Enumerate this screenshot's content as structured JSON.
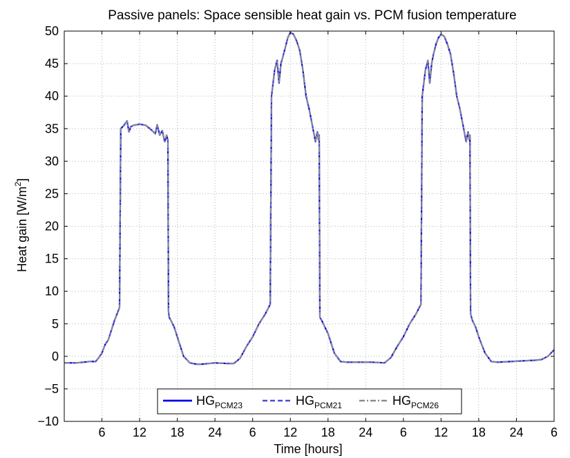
{
  "chart_data": {
    "type": "line",
    "title": "Passive panels: Space sensible heat gain vs. PCM fusion temperature",
    "xlabel": "Time [hours]",
    "ylabel_main": "Heat gain [W/m",
    "ylabel_sup": "2",
    "ylabel_tail": "]",
    "ylim": [
      -10,
      50
    ],
    "xlim": [
      0,
      78
    ],
    "grid": true,
    "legend_position": "bottom-center",
    "y_ticks": [
      -10,
      -5,
      0,
      5,
      10,
      15,
      20,
      25,
      30,
      35,
      40,
      45,
      50
    ],
    "x_ticks": [
      {
        "pos": 6,
        "label": "6"
      },
      {
        "pos": 12,
        "label": "12"
      },
      {
        "pos": 18,
        "label": "18"
      },
      {
        "pos": 24,
        "label": "24"
      },
      {
        "pos": 30,
        "label": "6"
      },
      {
        "pos": 36,
        "label": "12"
      },
      {
        "pos": 42,
        "label": "18"
      },
      {
        "pos": 48,
        "label": "24"
      },
      {
        "pos": 54,
        "label": "6"
      },
      {
        "pos": 60,
        "label": "12"
      },
      {
        "pos": 66,
        "label": "18"
      },
      {
        "pos": 72,
        "label": "24"
      },
      {
        "pos": 78,
        "label": "6"
      }
    ],
    "series": [
      {
        "name": "HG",
        "name_sub": "PCM23",
        "color": "#0000e6",
        "style": "solid"
      },
      {
        "name": "HG",
        "name_sub": "PCM21",
        "color": "#4a4ad8",
        "style": "dashed"
      },
      {
        "name": "HG",
        "name_sub": "PCM26",
        "color": "#8a8a8a",
        "style": "dashdot"
      }
    ],
    "x": [
      0,
      2,
      4,
      5,
      5.5,
      6,
      6.5,
      7,
      7.5,
      8,
      8.8,
      9,
      9.5,
      10,
      10.3,
      10.6,
      11,
      12,
      13,
      14,
      14.5,
      14.8,
      15.2,
      15.6,
      16,
      16.3,
      16.5,
      16.6,
      16.7,
      17,
      17.5,
      18,
      19,
      20,
      21,
      22,
      24,
      26,
      27,
      28,
      29,
      30,
      31,
      32,
      32.8,
      33,
      33.5,
      33.9,
      34.2,
      34.5,
      34.8,
      35.2,
      35.6,
      36,
      36.5,
      37,
      37.5,
      38,
      38.5,
      39,
      39.6,
      40,
      40.3,
      40.5,
      40.6,
      40.7,
      41,
      41.5,
      42,
      43,
      44,
      45,
      47,
      49,
      51,
      52,
      53,
      54,
      55,
      56,
      56.8,
      57,
      57.5,
      57.9,
      58.2,
      58.5,
      58.8,
      59.2,
      59.6,
      60,
      60.5,
      61,
      61.5,
      62,
      62.5,
      63,
      63.6,
      64,
      64.3,
      64.5,
      64.6,
      64.7,
      65,
      65.5,
      66,
      67,
      68,
      69,
      71,
      73,
      75,
      76,
      77,
      77.5,
      78
    ],
    "values": [
      -1.0,
      -1.0,
      -0.8,
      -0.8,
      -0.2,
      0.5,
      1.8,
      2.5,
      4.0,
      5.5,
      7.5,
      35.0,
      35.5,
      36.2,
      34.5,
      35.3,
      35.5,
      35.7,
      35.5,
      34.7,
      34.2,
      35.6,
      34.0,
      34.7,
      33.0,
      34.0,
      33.2,
      7.0,
      6.0,
      5.5,
      4.5,
      3.0,
      0.0,
      -1.0,
      -1.2,
      -1.2,
      -1.0,
      -1.1,
      -1.1,
      -0.3,
      1.5,
      3.0,
      5.0,
      6.5,
      8.0,
      40.0,
      44.0,
      45.5,
      42.0,
      45.0,
      46.0,
      47.5,
      49.0,
      49.8,
      49.5,
      48.5,
      47.0,
      44.0,
      40.0,
      38.0,
      35.0,
      33.0,
      34.5,
      33.3,
      34.0,
      6.0,
      5.5,
      4.5,
      3.5,
      0.5,
      -0.8,
      -0.9,
      -0.9,
      -0.9,
      -1.0,
      -0.2,
      1.5,
      3.0,
      5.0,
      6.5,
      8.0,
      40.0,
      44.0,
      45.5,
      42.0,
      45.0,
      46.5,
      48.0,
      49.0,
      49.5,
      49.2,
      48.0,
      46.5,
      43.5,
      40.0,
      38.0,
      35.0,
      33.0,
      34.5,
      33.3,
      34.0,
      6.5,
      5.5,
      4.5,
      3.0,
      0.5,
      -0.8,
      -0.9,
      -0.8,
      -0.7,
      -0.6,
      -0.5,
      0.0,
      0.5,
      1.0
    ]
  }
}
